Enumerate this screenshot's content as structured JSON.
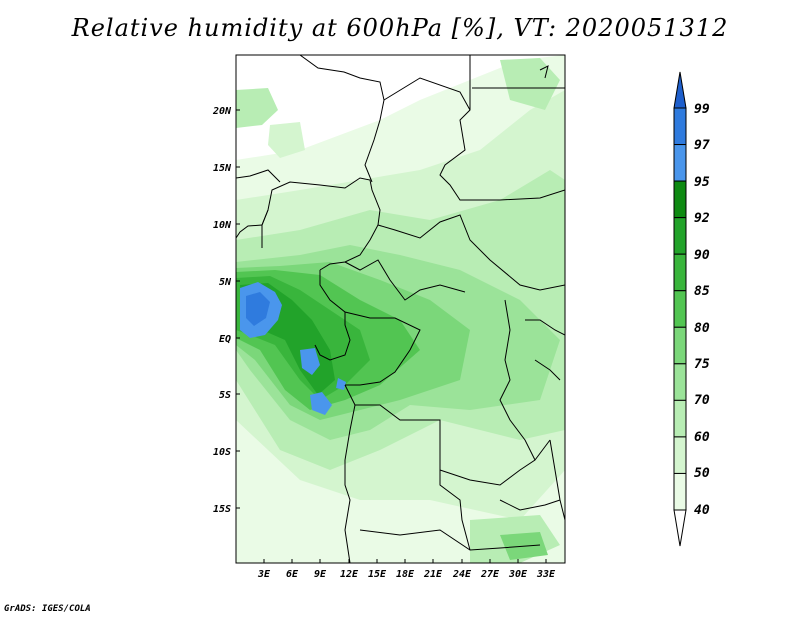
{
  "title": "Relative humidity at 600hPa [%], VT: 2020051312",
  "footer": "GrADS: IGES/COLA",
  "lat_labels": [
    "20N",
    "15N",
    "10N",
    "5N",
    "EQ",
    "5S",
    "10S",
    "15S"
  ],
  "lon_labels": [
    "3E",
    "6E",
    "9E",
    "12E",
    "15E",
    "18E",
    "21E",
    "24E",
    "27E",
    "30E",
    "33E"
  ],
  "colorbar": {
    "levels": [
      "99",
      "97",
      "95",
      "92",
      "90",
      "85",
      "80",
      "75",
      "70",
      "60",
      "50",
      "40"
    ],
    "colors": [
      "#1e5fcc",
      "#2f7bde",
      "#4a96ec",
      "#0e8a12",
      "#22a32a",
      "#39b53c",
      "#52c552",
      "#7bd77a",
      "#9be399",
      "#b8edb4",
      "#d4f5cf",
      "#eafbe6"
    ]
  }
}
